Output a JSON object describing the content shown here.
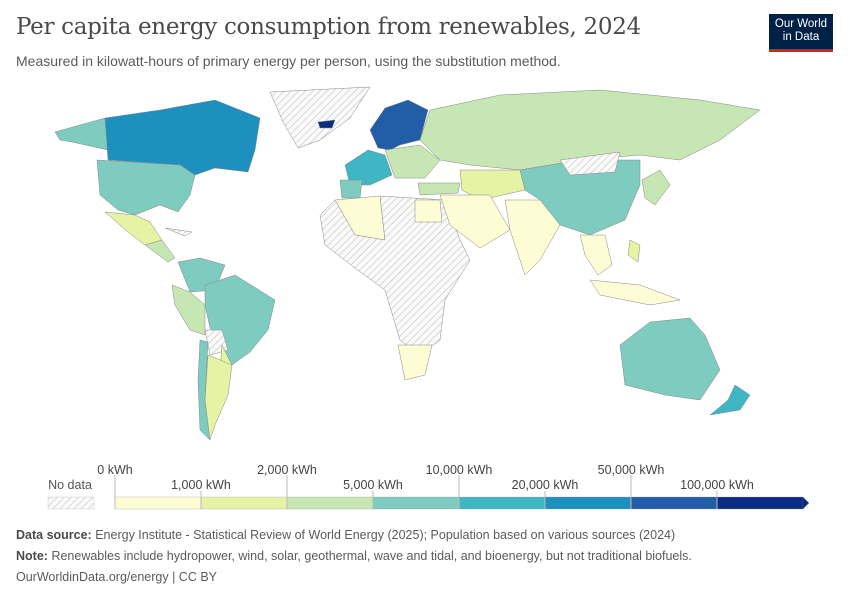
{
  "header": {
    "title": "Per capita energy consumption from renewables, 2024",
    "subtitle": "Measured in kilowatt-hours of primary energy per person, using the substitution method.",
    "logo": "Our World in Data"
  },
  "chart_data": {
    "type": "choropleth map",
    "title": "Per capita energy consumption from renewables, 2024",
    "unit": "kWh",
    "legend": {
      "no_data_label": "No data",
      "breaks": [
        "0 kWh",
        "1,000 kWh",
        "2,000 kWh",
        "5,000 kWh",
        "10,000 kWh",
        "20,000 kWh",
        "50,000 kWh",
        "100,000 kWh"
      ],
      "colors": [
        "#fefcd5",
        "#e6f3a4",
        "#c6e6b4",
        "#7ecbbf",
        "#40b5c4",
        "#1e90c0",
        "#225ea8",
        "#0c2c84"
      ],
      "placement": "bottom"
    }
  },
  "footer": {
    "source_label": "Data source:",
    "source_text": "Energy Institute - Statistical Review of World Energy (2025); Population based on various sources (2024)",
    "note_label": "Note:",
    "note_text": "Renewables include hydropower, wind, solar, geothermal, wave and tidal, and bioenergy, but not traditional biofuels.",
    "link": "OurWorldinData.org/energy | CC BY"
  }
}
